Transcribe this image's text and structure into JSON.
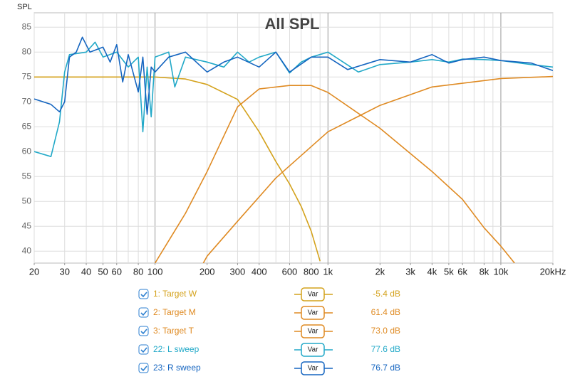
{
  "chart_data": {
    "type": "line",
    "title": "All SPL",
    "ylabel": "SPL",
    "xscale": "log",
    "xlim": [
      20,
      20000
    ],
    "ylim": [
      37.6,
      87.9
    ],
    "yticks": [
      40,
      45,
      50,
      55,
      60,
      65,
      70,
      75,
      80,
      85
    ],
    "xticks": [
      20,
      30,
      40,
      50,
      60,
      80,
      100,
      200,
      300,
      400,
      600,
      800,
      {
        "value": 1000,
        "label": "1k"
      },
      {
        "value": 2000,
        "label": "2k"
      },
      {
        "value": 3000,
        "label": "3k"
      },
      {
        "value": 4000,
        "label": "4k"
      },
      {
        "value": 5000,
        "label": "5k"
      },
      {
        "value": 6000,
        "label": "6k"
      },
      {
        "value": 8000,
        "label": "8k"
      },
      {
        "value": 10000,
        "label": "10k"
      },
      {
        "value": 20000,
        "label": "20kHz"
      }
    ],
    "x_minor_grid": [
      20,
      30,
      40,
      50,
      60,
      70,
      80,
      90,
      200,
      300,
      400,
      500,
      600,
      700,
      800,
      900,
      2000,
      3000,
      4000,
      5000,
      6000,
      7000,
      8000,
      9000,
      20000
    ],
    "x_major_grid": [
      100,
      1000,
      10000
    ],
    "grid": true,
    "button_label": "Var",
    "series": [
      {
        "name": "1: Target W",
        "color": "#d4a21c",
        "readout": "-5.4 dB",
        "x": [
          20,
          50,
          80,
          100,
          150,
          200,
          300,
          400,
          500,
          600,
          700,
          800,
          900
        ],
        "values": [
          75,
          75,
          75,
          75,
          74.6,
          73.5,
          70.5,
          64,
          58,
          53.5,
          49,
          44,
          38
        ]
      },
      {
        "name": "2: Target M",
        "color": "#df8a22",
        "readout": "61.4 dB",
        "x": [
          100,
          150,
          200,
          300,
          400,
          600,
          800,
          1000,
          2000,
          4000,
          6000,
          8000,
          10000,
          12000
        ],
        "values": [
          37.6,
          47.6,
          56,
          69,
          72.6,
          73.3,
          73.3,
          71.9,
          64.7,
          56,
          50.4,
          44.7,
          41,
          37.6
        ]
      },
      {
        "name": "3: Target T",
        "color": "#df8a22",
        "readout": "73.0 dB",
        "x": [
          190,
          200,
          300,
          500,
          1000,
          2000,
          4000,
          10000,
          20000
        ],
        "values": [
          37.6,
          39,
          46,
          54.7,
          64,
          69.3,
          73,
          74.7,
          75.1
        ]
      },
      {
        "name": "22: L sweep",
        "color": "#22a9c8",
        "readout": "77.6 dB",
        "x": [
          20,
          25,
          28,
          30,
          32,
          40,
          45,
          50,
          60,
          70,
          80,
          85,
          90,
          95,
          100,
          120,
          130,
          150,
          200,
          250,
          300,
          350,
          400,
          500,
          600,
          700,
          800,
          1000,
          1500,
          2000,
          3000,
          4000,
          5000,
          6000,
          8000,
          10000,
          15000,
          20000
        ],
        "values": [
          60,
          59,
          66,
          76,
          79.5,
          80,
          82,
          79,
          80,
          77,
          79,
          64,
          77,
          67,
          79,
          80,
          73,
          79,
          78,
          77,
          80,
          78,
          79,
          80,
          75.8,
          78,
          79,
          80,
          76,
          77.5,
          78,
          78.5,
          78,
          78.6,
          78.5,
          78.3,
          77.5,
          77
        ]
      },
      {
        "name": "23: R sweep",
        "color": "#1565c0",
        "readout": "76.7 dB",
        "x": [
          20,
          25,
          28,
          30,
          32,
          35,
          38,
          42,
          50,
          55,
          60,
          65,
          70,
          80,
          85,
          90,
          95,
          100,
          120,
          150,
          200,
          250,
          300,
          400,
          500,
          600,
          800,
          1000,
          1300,
          2000,
          3000,
          4000,
          5000,
          6000,
          8000,
          10000,
          15000,
          20000
        ],
        "values": [
          70.6,
          69.5,
          68,
          70,
          79,
          80,
          83,
          80,
          81,
          78,
          81.5,
          74,
          79.5,
          72,
          79,
          67.5,
          77,
          76,
          79,
          80,
          76,
          78,
          79,
          77,
          80,
          76,
          79,
          79,
          76.5,
          78.5,
          78,
          79.5,
          77.8,
          78.5,
          79,
          78.3,
          77.8,
          76.3
        ]
      }
    ]
  }
}
